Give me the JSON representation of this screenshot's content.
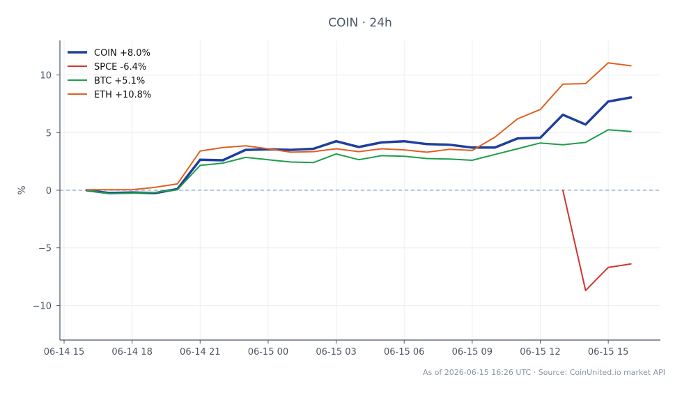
{
  "chart_data": {
    "type": "line",
    "title": "COIN · 24h",
    "ylabel": "%",
    "xlabel": "",
    "xlim": [
      0,
      26.3
    ],
    "ylim": [
      -13,
      13
    ],
    "grid": true,
    "legend_position": "top-left",
    "zero_line": true,
    "x_ticks": [
      {
        "x": 0,
        "label": "06-14 15"
      },
      {
        "x": 3,
        "label": "06-14 18"
      },
      {
        "x": 6,
        "label": "06-14 21"
      },
      {
        "x": 9,
        "label": "06-15 00"
      },
      {
        "x": 12,
        "label": "06-15 03"
      },
      {
        "x": 15,
        "label": "06-15 06"
      },
      {
        "x": 18,
        "label": "06-15 09"
      },
      {
        "x": 21,
        "label": "06-15 12"
      },
      {
        "x": 24,
        "label": "06-15 15"
      }
    ],
    "y_ticks": [
      {
        "v": 10,
        "label": "10"
      },
      {
        "v": 5,
        "label": "5"
      },
      {
        "v": 0,
        "label": "0"
      },
      {
        "v": -5,
        "label": "−5"
      },
      {
        "v": -10,
        "label": "−10"
      }
    ],
    "series": [
      {
        "name": "COIN +8.0%",
        "color": "#1f3f9e",
        "width": 3.5,
        "points": [
          [
            1,
            0
          ],
          [
            2,
            -0.25
          ],
          [
            3,
            -0.2
          ],
          [
            4,
            -0.25
          ],
          [
            5,
            0.1
          ],
          [
            6,
            2.65
          ],
          [
            7,
            2.6
          ],
          [
            8,
            3.5
          ],
          [
            9,
            3.55
          ],
          [
            10,
            3.5
          ],
          [
            11,
            3.6
          ],
          [
            12,
            4.25
          ],
          [
            13,
            3.75
          ],
          [
            14,
            4.15
          ],
          [
            15,
            4.25
          ],
          [
            16,
            4.0
          ],
          [
            17,
            3.95
          ],
          [
            18,
            3.7
          ],
          [
            19,
            3.7
          ],
          [
            20,
            4.5
          ],
          [
            21,
            4.55
          ],
          [
            22,
            6.55
          ],
          [
            23,
            5.7
          ],
          [
            24,
            7.7
          ],
          [
            25,
            8.05
          ]
        ]
      },
      {
        "name": "SPCE -6.4%",
        "color": "#d1352b",
        "width": 2,
        "points": [
          [
            22,
            0
          ],
          [
            23,
            -8.7
          ],
          [
            24,
            -6.7
          ],
          [
            25,
            -6.4
          ]
        ]
      },
      {
        "name": "BTC +5.1%",
        "color": "#1e9e4a",
        "width": 2,
        "points": [
          [
            1,
            0
          ],
          [
            2,
            -0.3
          ],
          [
            3,
            -0.25
          ],
          [
            4,
            -0.2
          ],
          [
            5,
            0.05
          ],
          [
            6,
            2.15
          ],
          [
            7,
            2.35
          ],
          [
            8,
            2.85
          ],
          [
            9,
            2.65
          ],
          [
            10,
            2.45
          ],
          [
            11,
            2.4
          ],
          [
            12,
            3.15
          ],
          [
            13,
            2.65
          ],
          [
            14,
            3.0
          ],
          [
            15,
            2.95
          ],
          [
            16,
            2.75
          ],
          [
            17,
            2.7
          ],
          [
            18,
            2.6
          ],
          [
            19,
            3.1
          ],
          [
            20,
            3.6
          ],
          [
            21,
            4.1
          ],
          [
            22,
            3.95
          ],
          [
            23,
            4.15
          ],
          [
            24,
            5.25
          ],
          [
            25,
            5.1
          ]
        ]
      },
      {
        "name": "ETH +10.8%",
        "color": "#e0611f",
        "width": 2,
        "points": [
          [
            1,
            0.05
          ],
          [
            2,
            0.05
          ],
          [
            3,
            0.05
          ],
          [
            4,
            0.25
          ],
          [
            5,
            0.55
          ],
          [
            6,
            3.4
          ],
          [
            7,
            3.7
          ],
          [
            8,
            3.85
          ],
          [
            9,
            3.6
          ],
          [
            10,
            3.3
          ],
          [
            11,
            3.35
          ],
          [
            12,
            3.6
          ],
          [
            13,
            3.35
          ],
          [
            14,
            3.6
          ],
          [
            15,
            3.5
          ],
          [
            16,
            3.3
          ],
          [
            17,
            3.55
          ],
          [
            18,
            3.45
          ],
          [
            19,
            4.6
          ],
          [
            20,
            6.2
          ],
          [
            21,
            7.0
          ],
          [
            22,
            9.2
          ],
          [
            23,
            9.25
          ],
          [
            24,
            11.05
          ],
          [
            25,
            10.8
          ]
        ]
      }
    ]
  },
  "footer": "As of 2026-06-15 16:26 UTC · Source: CoinUnited.io market API"
}
